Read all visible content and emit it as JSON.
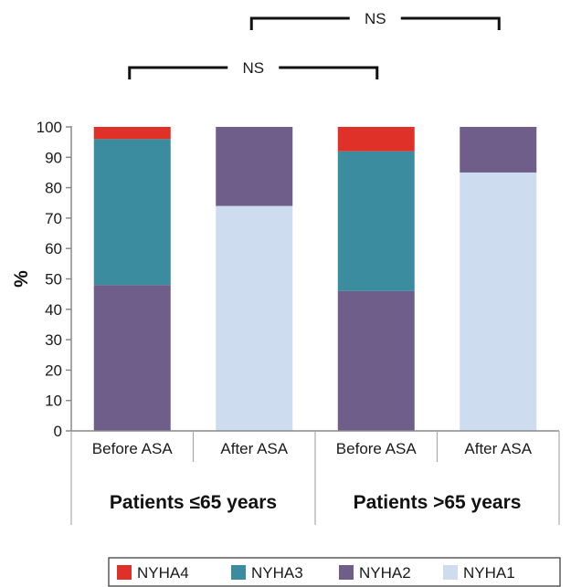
{
  "chart_data": {
    "type": "bar",
    "stacked": true,
    "ylabel": "%",
    "ylim": [
      0,
      100
    ],
    "yticks": [
      "0",
      "10",
      "20",
      "30",
      "40",
      "50",
      "60",
      "70",
      "80",
      "90",
      "100"
    ],
    "categories": [
      "Before ASA",
      "After ASA",
      "Before ASA",
      "After ASA"
    ],
    "groups": [
      {
        "label": "Patients ≤65 years",
        "categories": [
          0,
          1
        ]
      },
      {
        "label": "Patients >65 years",
        "categories": [
          2,
          3
        ]
      }
    ],
    "series": [
      {
        "name": "NYHA1",
        "color": "#cddcee",
        "values": [
          0,
          74,
          0,
          85
        ]
      },
      {
        "name": "NYHA2",
        "color": "#6f5d8a",
        "values": [
          48,
          26,
          46,
          15
        ]
      },
      {
        "name": "NYHA3",
        "color": "#3a8c9e",
        "values": [
          48,
          0,
          46,
          0
        ]
      },
      {
        "name": "NYHA4",
        "color": "#e03128",
        "values": [
          4,
          0,
          8,
          0
        ]
      }
    ],
    "legend_order": [
      "NYHA4",
      "NYHA3",
      "NYHA2",
      "NYHA1"
    ],
    "legend_position": "bottom",
    "comparisons": [
      {
        "label": "NS",
        "between": [
          0,
          2
        ]
      },
      {
        "label": "NS",
        "between": [
          1,
          3
        ]
      }
    ],
    "grid": false
  }
}
